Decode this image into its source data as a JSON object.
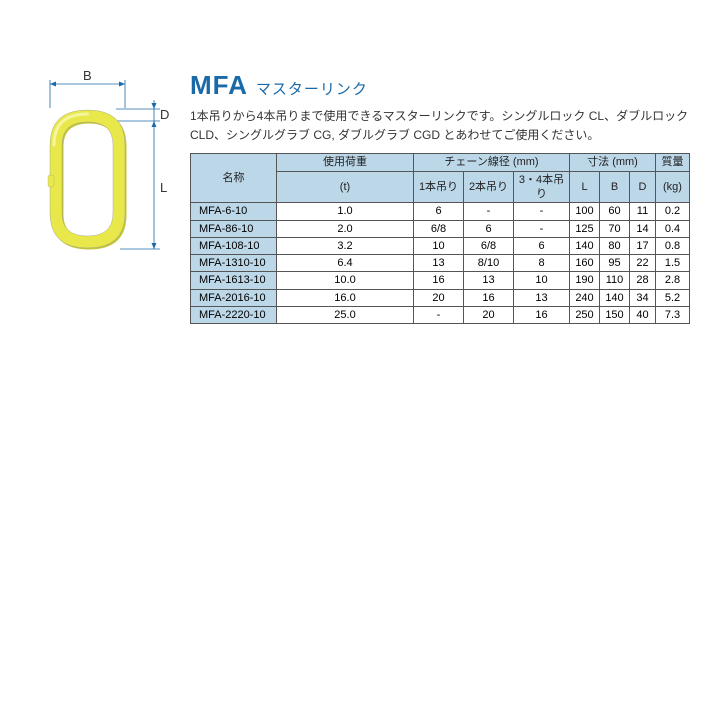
{
  "title": {
    "main": "MFA",
    "sub": "マスターリンク"
  },
  "description": "1本吊りから4本吊りまで使用できるマスターリンクです。シングルロック CL、ダブルロック CLD、シングルグラブ CG, ダブルグラブ CGD とあわせてご使用ください。",
  "diagram": {
    "labels": {
      "B": "B",
      "D": "D",
      "L": "L"
    },
    "ring_color": "#e8e84a",
    "ring_shadow": "#c4c437",
    "dim_color": "#1b6aa8",
    "stroke_width": 10
  },
  "table": {
    "headers": {
      "name": "名称",
      "load": "使用荷重",
      "load_unit": "(t)",
      "chain": "チェーン線径 (mm)",
      "c1": "1本吊り",
      "c2": "2本吊り",
      "c34": "3・4本吊り",
      "dim": "寸法 (mm)",
      "L": "L",
      "B": "B",
      "D": "D",
      "mass": "質量",
      "mass_unit": "(kg)"
    },
    "rows": [
      {
        "name": "MFA-6-10",
        "load": "1.0",
        "c1": "6",
        "c2": "-",
        "c34": "-",
        "L": "100",
        "B": "60",
        "D": "11",
        "kg": "0.2"
      },
      {
        "name": "MFA-86-10",
        "load": "2.0",
        "c1": "6/8",
        "c2": "6",
        "c34": "-",
        "L": "125",
        "B": "70",
        "D": "14",
        "kg": "0.4"
      },
      {
        "name": "MFA-108-10",
        "load": "3.2",
        "c1": "10",
        "c2": "6/8",
        "c34": "6",
        "L": "140",
        "B": "80",
        "D": "17",
        "kg": "0.8"
      },
      {
        "name": "MFA-1310-10",
        "load": "6.4",
        "c1": "13",
        "c2": "8/10",
        "c34": "8",
        "L": "160",
        "B": "95",
        "D": "22",
        "kg": "1.5"
      },
      {
        "name": "MFA-1613-10",
        "load": "10.0",
        "c1": "16",
        "c2": "13",
        "c34": "10",
        "L": "190",
        "B": "110",
        "D": "28",
        "kg": "2.8"
      },
      {
        "name": "MFA-2016-10",
        "load": "16.0",
        "c1": "20",
        "c2": "16",
        "c34": "13",
        "L": "240",
        "B": "140",
        "D": "34",
        "kg": "5.2"
      },
      {
        "name": "MFA-2220-10",
        "load": "25.0",
        "c1": "-",
        "c2": "20",
        "c34": "16",
        "L": "250",
        "B": "150",
        "D": "40",
        "kg": "7.3"
      }
    ],
    "header_bg": "#bcd7e8",
    "border_color": "#555555"
  }
}
